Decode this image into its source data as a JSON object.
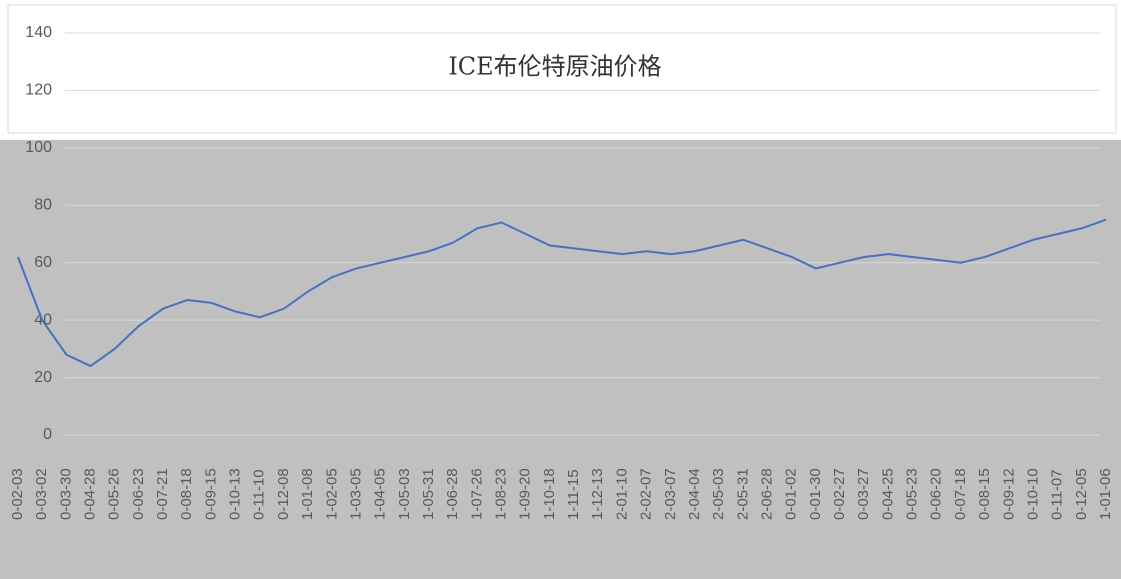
{
  "chart_data": {
    "type": "line",
    "title": "ICE布伦特原油价格",
    "categories": [
      "0-02-03",
      "0-03-02",
      "0-03-30",
      "0-04-28",
      "0-05-26",
      "0-06-23",
      "0-07-21",
      "0-08-18",
      "0-09-15",
      "0-10-13",
      "0-11-10",
      "0-12-08",
      "1-01-08",
      "1-02-05",
      "1-03-05",
      "1-04-05",
      "1-05-03",
      "1-05-31",
      "1-06-28",
      "1-07-26",
      "1-08-23",
      "1-09-20",
      "1-10-18",
      "1-11-15",
      "1-12-13",
      "2-01-10",
      "2-02-07",
      "2-03-07",
      "2-04-04",
      "2-05-03",
      "2-05-31",
      "2-06-28",
      "0-01-02",
      "0-01-30",
      "0-02-27",
      "0-03-27",
      "0-04-25",
      "0-05-23",
      "0-06-20",
      "0-07-18",
      "0-08-15",
      "0-09-12",
      "0-10-10",
      "0-11-07",
      "0-12-05",
      "1-01-06"
    ],
    "series": [
      {
        "color": "#4472c4",
        "values": [
          62,
          40,
          28,
          24,
          30,
          38,
          44,
          47,
          46,
          43,
          41,
          44,
          50,
          55,
          58,
          60,
          62,
          64,
          67,
          72,
          74,
          70,
          66,
          65,
          64,
          63,
          64,
          63,
          64,
          66,
          68,
          65,
          62,
          58,
          60,
          62,
          63,
          62,
          61,
          60,
          62,
          65,
          68,
          70,
          72,
          75
        ]
      }
    ],
    "ylim": [
      0,
      140
    ],
    "yticks": [
      0,
      20,
      40,
      60,
      80,
      100,
      120,
      140
    ],
    "grid": true
  }
}
